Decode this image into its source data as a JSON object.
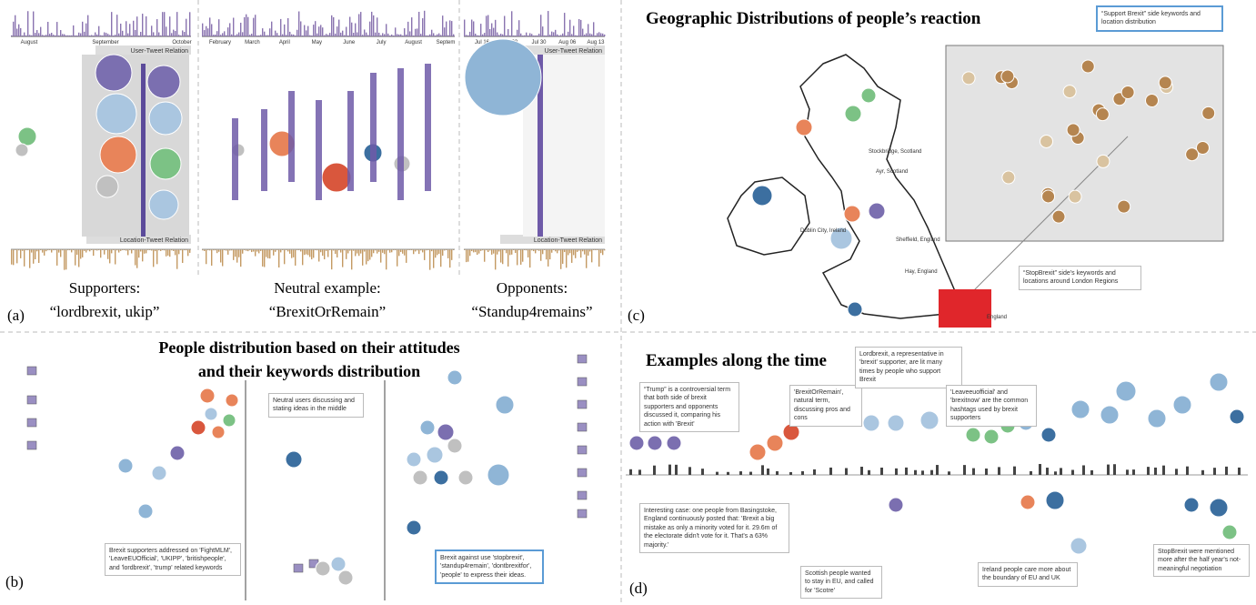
{
  "panel_a": {
    "label": "(a)",
    "groups": [
      {
        "heading": "Supporters:",
        "keywords": "“lordbrexit, ukip”",
        "months": [
          "August",
          "September",
          "October"
        ],
        "top_relation": "User-Tweet Relation",
        "bottom_relation": "Location-Tweet Relation"
      },
      {
        "heading": "Neutral example:",
        "keywords": "“BrexitOrRemain”",
        "months": [
          "February",
          "March",
          "April",
          "May",
          "June",
          "July",
          "August",
          "Septem"
        ]
      },
      {
        "heading": "Opponents:",
        "keywords": "“Standup4remains”",
        "months": [
          "Jul 16",
          "Jul 23",
          "Jul 30",
          "Aug 06",
          "Aug 13"
        ],
        "top_relation": "User-Tweet Relation",
        "bottom_relation": "Location-Tweet Relation"
      }
    ]
  },
  "panel_b": {
    "label": "(b)",
    "title_lines": [
      "People distribution based on their attitudes",
      "and their keywords distribution"
    ],
    "annotations": [
      "Brexit supporters addressed on 'FightMLM', 'LeaveEUOfficial', 'UKIPP', 'britishpeople', and 'lordbrexit', 'trump' related keywords",
      "Neutral users discussing and stating ideas in the middle",
      "Brexit against use 'stopbrexit', 'standup4remain', 'dontbrexitfor', 'people' to express their ideas."
    ]
  },
  "panel_c": {
    "label": "(c)",
    "title": "Geographic Distributions of people’s reaction",
    "annotations": [
      "“Support Brexit” side keywords and location distribution",
      "“StopBrexit” side’s keywords and locations around London Regions"
    ],
    "places": [
      "Stockbridge, Scotland",
      "Ayr, Scotland",
      "Dublin City, Ireland",
      "Sheffield, England",
      "Hay, England",
      "England"
    ]
  },
  "panel_d": {
    "label": "(d)",
    "title": "Examples along the time",
    "annotations": [
      "“Trump” is a controversial term that both side of brexit supporters and opponents discussed it, comparing his action with 'Brexit'",
      "'BrexitOrRemain', natural term, discussing pros and cons",
      "Lordbrexit, a representative in 'brexit' supporter, are lit many times by people who support Brexit",
      "'Leaveeuofficial' and 'brexitnow' are the common hashtags used by brexit supporters",
      "Interesting case: one people from Basingstoke, England continuously posted that: 'Brexit a big mistake as only a minority voted for it. 29.6m of the electorate didn't vote for it. That's a 63% majority.'",
      "Scottish people wanted to stay in EU, and called for 'Scotre'",
      "Ireland people care more about the boundary of EU and UK",
      "StopBrexit were mentioned more after the half year's not-meaningful negotiation"
    ]
  }
}
